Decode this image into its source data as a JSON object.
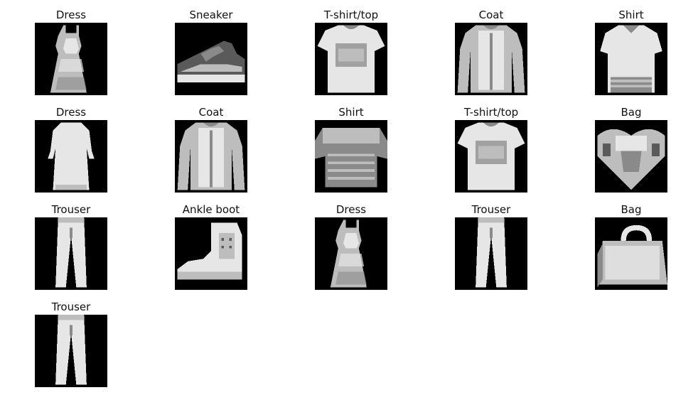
{
  "figure": {
    "columns": 5,
    "background": "#ffffff",
    "image_background": "#000000",
    "items": [
      {
        "label": "Dress",
        "shape": "dress"
      },
      {
        "label": "Sneaker",
        "shape": "sneaker"
      },
      {
        "label": "T-shirt/top",
        "shape": "tshirt"
      },
      {
        "label": "Coat",
        "shape": "coat"
      },
      {
        "label": "Shirt",
        "shape": "shirt"
      },
      {
        "label": "Dress",
        "shape": "dress-long"
      },
      {
        "label": "Coat",
        "shape": "coat"
      },
      {
        "label": "Shirt",
        "shape": "shirt-wide"
      },
      {
        "label": "T-shirt/top",
        "shape": "tshirt"
      },
      {
        "label": "Bag",
        "shape": "bag-heart"
      },
      {
        "label": "Trouser",
        "shape": "trouser"
      },
      {
        "label": "Ankle boot",
        "shape": "ankle-boot"
      },
      {
        "label": "Dress",
        "shape": "dress"
      },
      {
        "label": "Trouser",
        "shape": "trouser"
      },
      {
        "label": "Bag",
        "shape": "bag-handle"
      },
      {
        "label": "Trouser",
        "shape": "trouser"
      }
    ]
  }
}
